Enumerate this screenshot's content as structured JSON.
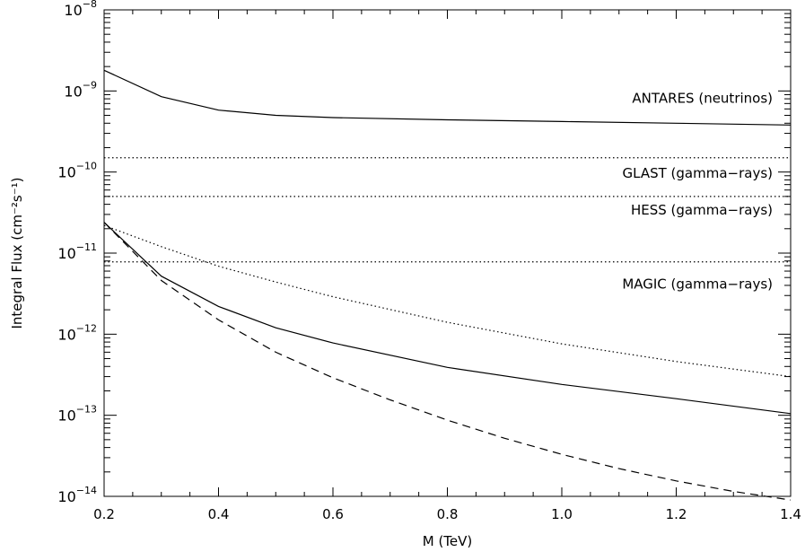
{
  "chart_data": {
    "type": "line",
    "title": "",
    "xlabel": "M (TeV)",
    "ylabel": "Integral Flux (cm⁻²s⁻¹)",
    "xlim": [
      0.2,
      1.4
    ],
    "ylim": [
      1e-14,
      1e-08
    ],
    "yscale": "log",
    "grid": false,
    "legend": "none",
    "xticks": [
      0.2,
      0.4,
      0.6,
      0.8,
      1.0,
      1.2,
      1.4
    ],
    "xtick_labels": [
      "0.2",
      "0.4",
      "0.6",
      "0.8",
      "1.0",
      "1.2",
      "1.4"
    ],
    "ytick_base": "10",
    "ytick_exponents": [
      "−8",
      "−9",
      "−10",
      "−11",
      "−12",
      "−13",
      "−14"
    ],
    "ytick_values": [
      1e-08,
      1e-09,
      1e-10,
      1e-11,
      1e-12,
      1e-13,
      1e-14
    ],
    "series": [
      {
        "style": "solid",
        "x": [
          0.2,
          0.3,
          0.4,
          0.5,
          0.6,
          0.8,
          1.0,
          1.2,
          1.4
        ],
        "y": [
          1.8e-09,
          8.5e-10,
          5.8e-10,
          5e-10,
          4.7e-10,
          4.4e-10,
          4.2e-10,
          4e-10,
          3.8e-10
        ]
      },
      {
        "style": "dotted",
        "x": [
          0.2,
          0.3,
          0.4,
          0.5,
          0.6,
          0.8,
          1.0,
          1.2,
          1.4
        ],
        "y": [
          2.2e-11,
          1.2e-11,
          6.9e-12,
          4.4e-12,
          2.9e-12,
          1.4e-12,
          7.6e-13,
          4.6e-13,
          3e-13
        ]
      },
      {
        "style": "solid",
        "x": [
          0.2,
          0.3,
          0.4,
          0.5,
          0.6,
          0.8,
          1.0,
          1.2,
          1.4
        ],
        "y": [
          2.4e-11,
          5.2e-12,
          2.2e-12,
          1.2e-12,
          7.8e-13,
          3.9e-13,
          2.4e-13,
          1.6e-13,
          1.05e-13
        ]
      },
      {
        "style": "dashed",
        "x": [
          0.2,
          0.3,
          0.4,
          0.5,
          0.6,
          0.7,
          0.8,
          0.9,
          1.0,
          1.1,
          1.2,
          1.3,
          1.4
        ],
        "y": [
          2.4e-11,
          4.6e-12,
          1.5e-12,
          6e-13,
          2.9e-13,
          1.55e-13,
          8.7e-14,
          5.2e-14,
          3.3e-14,
          2.2e-14,
          1.55e-14,
          1.15e-14,
          9e-15
        ]
      }
    ],
    "reference_lines": [
      {
        "label": "ANTARES (neutrinos)",
        "y": 3.8e-10,
        "style": "none"
      },
      {
        "label": "GLAST (gamma−rays)",
        "y": 1.5e-10,
        "style": "dotted"
      },
      {
        "label": "HESS (gamma−rays)",
        "y": 5e-11,
        "style": "dotted"
      },
      {
        "label": "MAGIC (gamma−rays)",
        "y": 7.8e-12,
        "style": "dotted"
      }
    ]
  }
}
